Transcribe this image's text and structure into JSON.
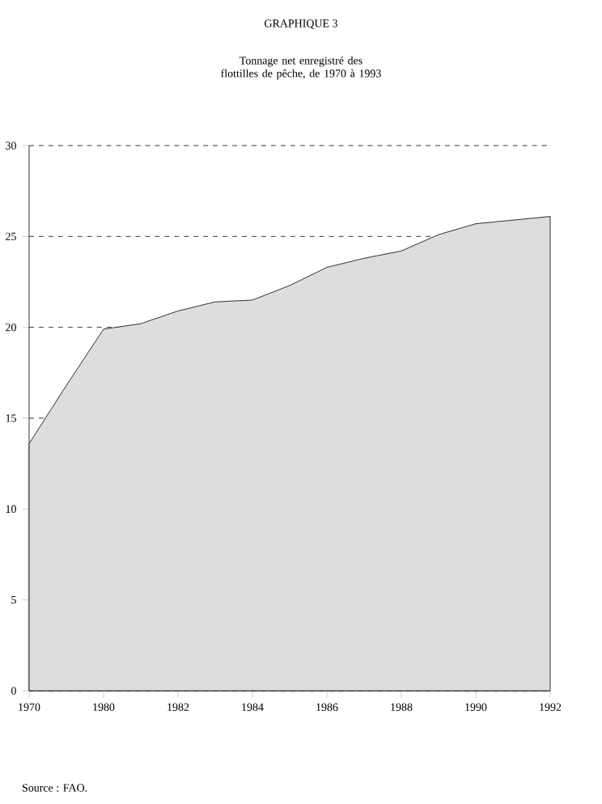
{
  "chart_data": {
    "type": "area",
    "title": "GRAPHIQUE 3",
    "subtitle": "Tonnage net enregistré des flottilles de pêche, de 1970 à 1993",
    "categories": [
      "1970",
      null,
      "1980",
      null,
      "1982",
      null,
      "1984",
      null,
      "1986",
      null,
      "1988",
      null,
      "1990",
      null,
      "1992"
    ],
    "values": [
      13.6,
      16.8,
      19.9,
      20.2,
      20.9,
      21.4,
      21.5,
      22.3,
      23.3,
      23.8,
      24.2,
      25.1,
      25.7,
      25.9,
      26.1
    ],
    "color": "#dddddd",
    "ylim": [
      0,
      30
    ],
    "yticks": [
      0,
      5,
      10,
      15,
      20,
      25,
      30
    ],
    "grid": "y",
    "annotations": [
      "Source : FAO."
    ]
  }
}
